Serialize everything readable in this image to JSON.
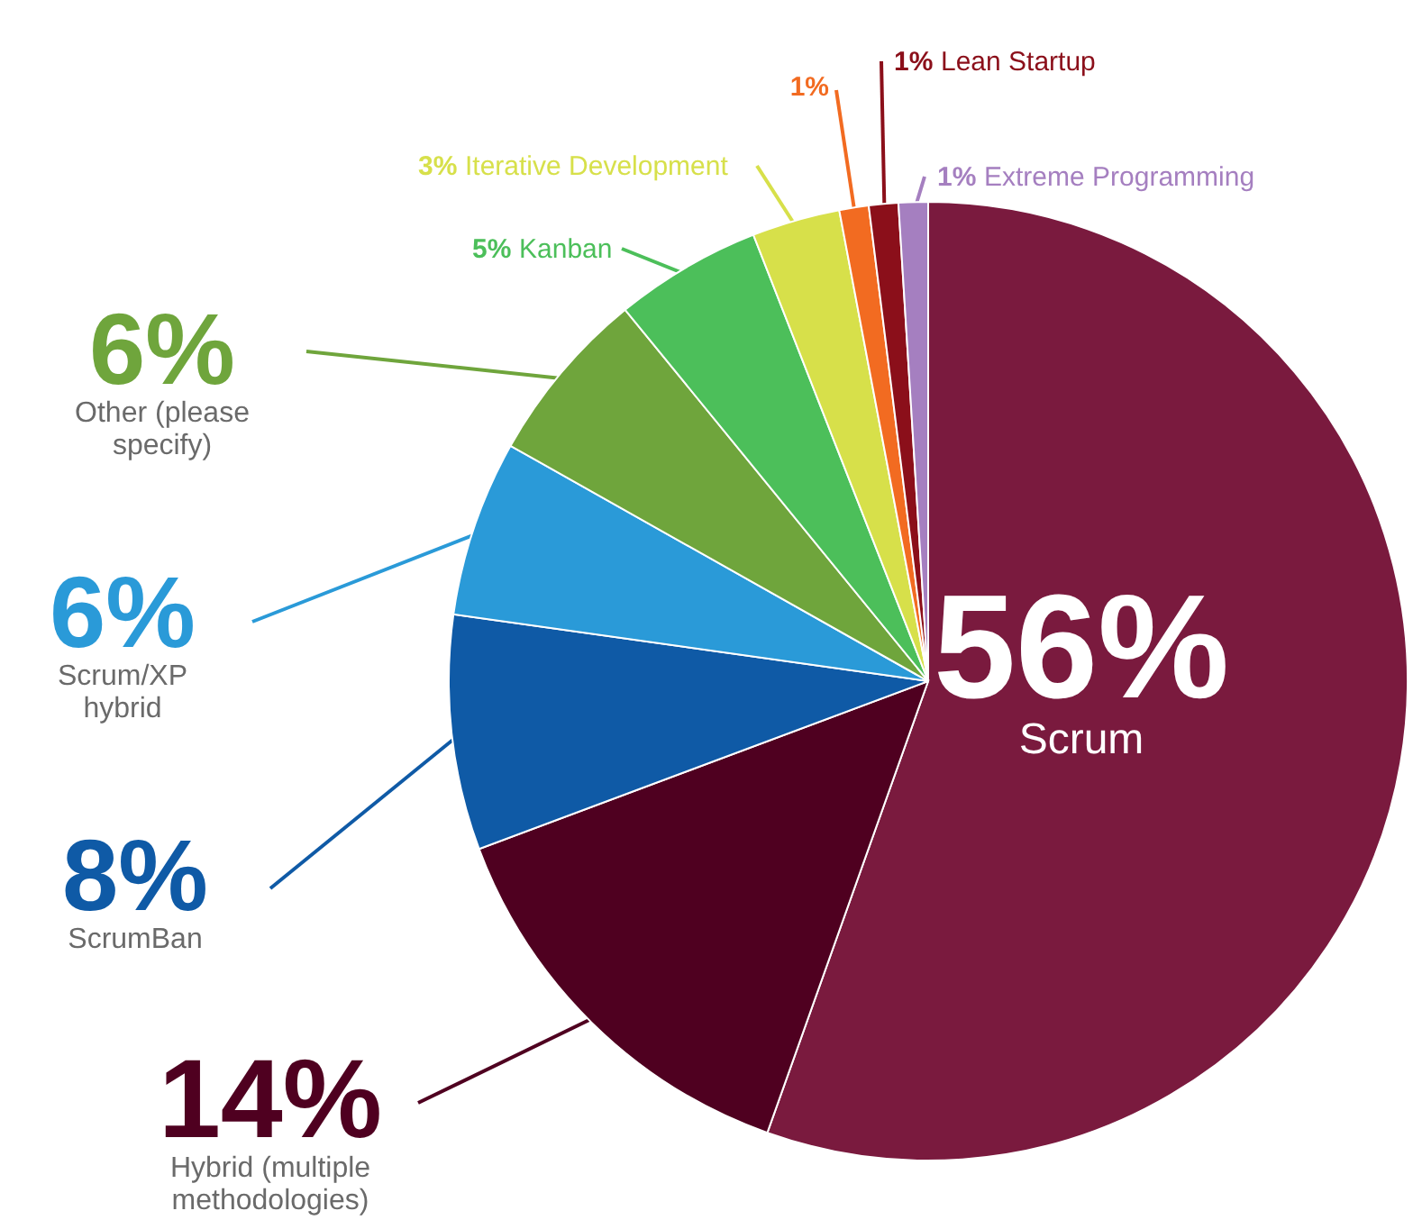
{
  "chart_data": {
    "type": "pie",
    "categories": [
      "Scrum",
      "Hybrid (multiple methodologies)",
      "ScrumBan",
      "Scrum/XP hybrid",
      "Other (please specify)",
      "Kanban",
      "Iterative Development",
      null,
      "Lean Startup",
      "Extreme Programming"
    ],
    "values": [
      56,
      14,
      8,
      6,
      6,
      5,
      3,
      1,
      1,
      1
    ],
    "value_labels": [
      "56%",
      "14%",
      "8%",
      "6%",
      "6%",
      "5%",
      "3%",
      "1%",
      "1%",
      "1%"
    ],
    "colors": [
      "#7a1a3e",
      "#4f0020",
      "#0f5aa6",
      "#2a9ad8",
      "#6fa53c",
      "#4cbf5a",
      "#d7e04a",
      "#f26b21",
      "#8b0f1a",
      "#a57fc0"
    ]
  }
}
